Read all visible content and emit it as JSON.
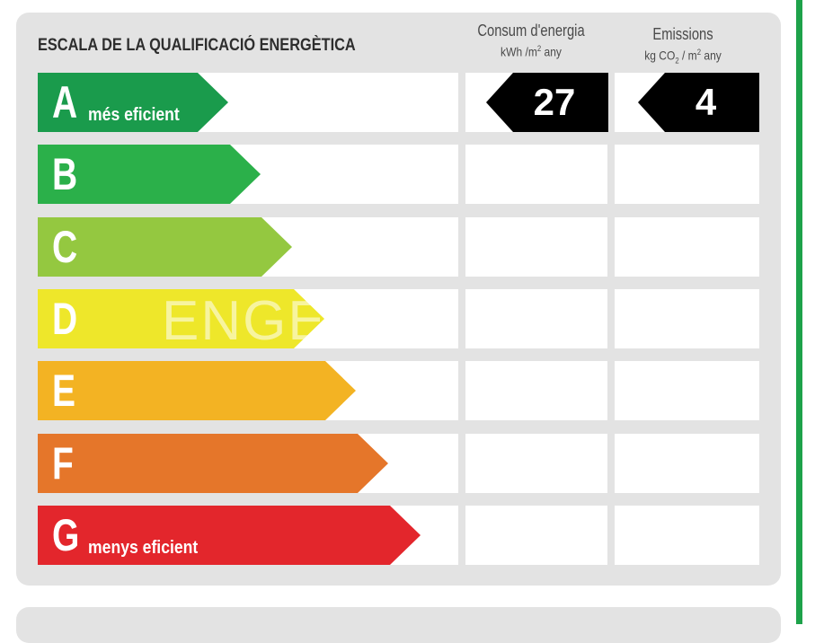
{
  "header": {
    "scale_title": "ESCALA DE LA QUALIFICACIÓ ENERGÈTICA",
    "consumption": {
      "title": "Consum d'energia",
      "unit_pre": "kWh /m",
      "unit_sup": "2",
      "unit_post": " any"
    },
    "emissions": {
      "title": "Emissions",
      "unit_pre": "kg CO",
      "unit_sub": "2",
      "unit_mid": " / m",
      "unit_sup": "2",
      "unit_post": " any"
    }
  },
  "ratings": [
    {
      "letter": "A",
      "caption": "més eficient",
      "color": "#1a9b4c"
    },
    {
      "letter": "B",
      "caption": "",
      "color": "#2bb04a"
    },
    {
      "letter": "C",
      "caption": "",
      "color": "#94c840"
    },
    {
      "letter": "D",
      "caption": "",
      "color": "#eee72a"
    },
    {
      "letter": "E",
      "caption": "",
      "color": "#f3b323"
    },
    {
      "letter": "F",
      "caption": "",
      "color": "#e5762a"
    },
    {
      "letter": "G",
      "caption": "menys eficient",
      "color": "#e3262c"
    }
  ],
  "result": {
    "rating": "A",
    "consumption_value": "27",
    "emissions_value": "4"
  },
  "watermark": "ENGE"
}
